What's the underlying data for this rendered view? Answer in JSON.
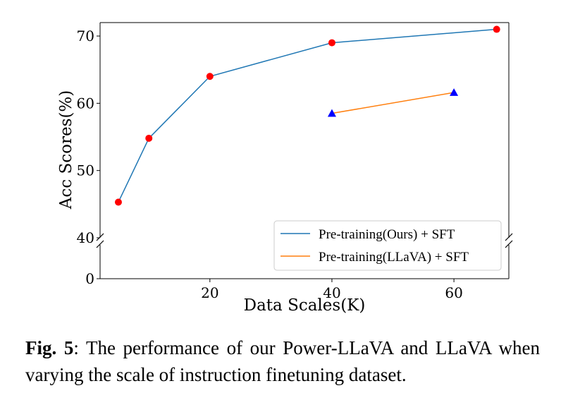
{
  "chart_data": {
    "type": "line",
    "xlabel": "Data Scales(K)",
    "ylabel": "Acc Scores(%)",
    "xlim": [
      2,
      69
    ],
    "ylim_upper": [
      40,
      72
    ],
    "ylim_lower": [
      0,
      7
    ],
    "broken_y_axis": true,
    "x_ticks": [
      20,
      40,
      60
    ],
    "y_ticks_upper": [
      40,
      50,
      60,
      70
    ],
    "y_ticks_lower": [
      0
    ],
    "series": [
      {
        "name": "Pre-training(Ours) + SFT",
        "color": "#1f77b4",
        "marker": "circle",
        "marker_color": "#ff0000",
        "x": [
          5,
          10,
          20,
          40,
          67
        ],
        "y": [
          45.3,
          54.8,
          64.0,
          69.0,
          71.0
        ]
      },
      {
        "name": "Pre-training(LLaVA) + SFT",
        "color": "#ff7f0e",
        "marker": "triangle",
        "marker_color": "#0000ff",
        "x": [
          40,
          60
        ],
        "y": [
          58.5,
          61.6
        ]
      }
    ],
    "legend_position": "lower-right"
  },
  "caption": {
    "label": "Fig. 5",
    "text": ": The performance of our Power-LLaVA and LLaVA when varying the scale of instruction finetuning dataset."
  }
}
